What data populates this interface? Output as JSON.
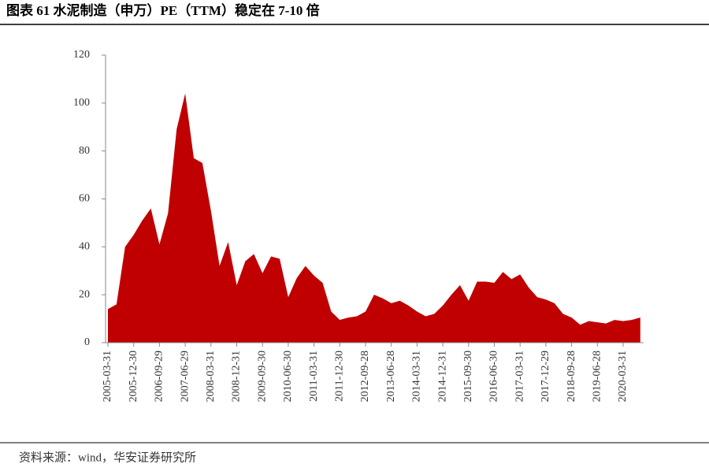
{
  "chart_data": {
    "type": "area",
    "title": "图表 61  水泥制造（申万）PE（TTM）稳定在 7-10 倍",
    "source": "资料来源：wind，华安证券研究所",
    "categories": [
      "2005-03-31",
      null,
      null,
      "2005-12-30",
      null,
      null,
      "2006-09-29",
      null,
      null,
      "2007-06-29",
      null,
      null,
      "2008-03-31",
      null,
      null,
      "2008-12-31",
      null,
      null,
      "2009-09-30",
      null,
      null,
      "2010-06-30",
      null,
      null,
      "2011-03-31",
      null,
      null,
      "2011-12-30",
      null,
      null,
      "2012-09-28",
      null,
      null,
      "2013-06-28",
      null,
      null,
      "2014-03-31",
      null,
      null,
      "2014-12-31",
      null,
      null,
      "2015-09-30",
      null,
      null,
      "2016-06-30",
      null,
      null,
      "2017-03-31",
      null,
      null,
      "2017-12-29",
      null,
      null,
      "2018-09-28",
      null,
      null,
      "2019-06-28",
      null,
      null,
      "2020-03-31",
      null,
      null
    ],
    "values": [
      14,
      16,
      40,
      45,
      51,
      56,
      41,
      54,
      89,
      104,
      77,
      75,
      55,
      32,
      42,
      24,
      34,
      37,
      29,
      36,
      35,
      19,
      27,
      32,
      28,
      25,
      13,
      9.5,
      10.5,
      11,
      13,
      20,
      18.5,
      16.5,
      17.5,
      15.5,
      13,
      11,
      12,
      15.5,
      20,
      24,
      17.5,
      25.5,
      25.5,
      25,
      29.5,
      26.5,
      28.5,
      23,
      19,
      18,
      16.5,
      12,
      10.5,
      7.5,
      9,
      8.5,
      8,
      9.5,
      9,
      9.5,
      10.5
    ],
    "color": "#c00000",
    "ylim": [
      0,
      120
    ],
    "yticks": [
      0,
      20,
      40,
      60,
      80,
      100,
      120
    ],
    "grid": false
  }
}
